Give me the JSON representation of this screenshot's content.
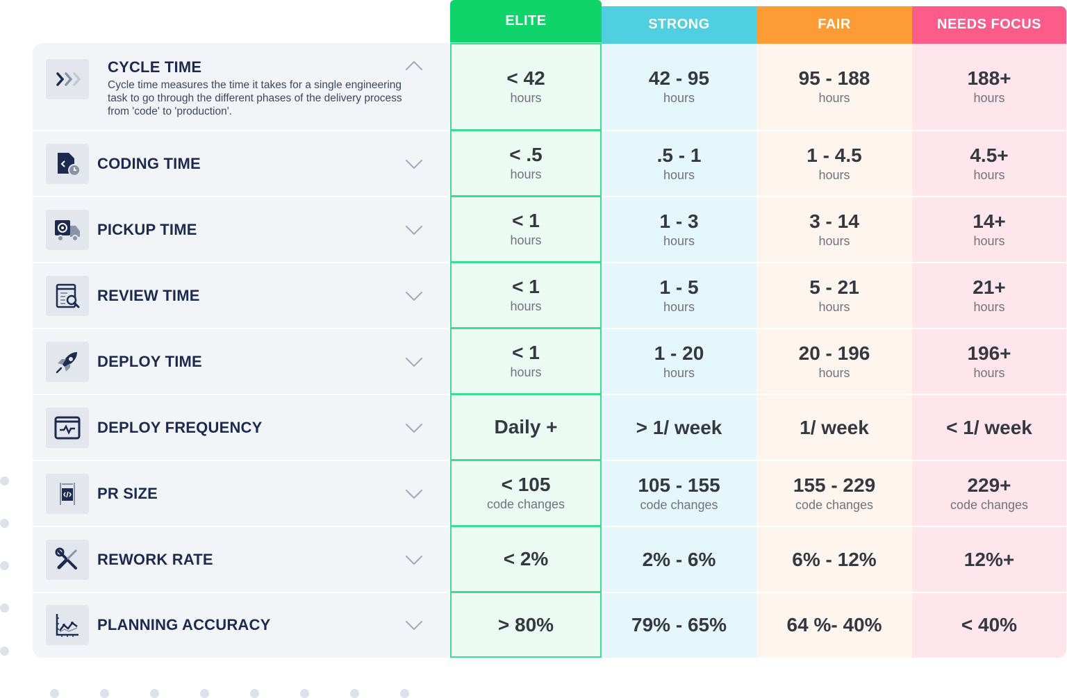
{
  "columns": [
    {
      "key": "elite",
      "label": "ELITE",
      "color": "#0fd46a",
      "bg": "#ebfaf3"
    },
    {
      "key": "strong",
      "label": "STRONG",
      "color": "#4fcfe0",
      "bg": "#e5f7fa"
    },
    {
      "key": "fair",
      "label": "FAIR",
      "color": "#fd9b35",
      "bg": "#fff5ef"
    },
    {
      "key": "needs_focus",
      "label": "NEEDS FOCUS",
      "color": "#fd5c8a",
      "bg": "#ffe6ec"
    }
  ],
  "metrics": [
    {
      "title": "CYCLE TIME",
      "icon": "chevrons-icon",
      "expanded": true,
      "description": "Cycle time measures the time it takes for a single engineering task to go through the different phases of the delivery process from 'code' to 'production'.",
      "cells": [
        {
          "value": "< 42",
          "unit": "hours"
        },
        {
          "value": "42 - 95",
          "unit": "hours"
        },
        {
          "value": "95 - 188",
          "unit": "hours"
        },
        {
          "value": "188+",
          "unit": "hours"
        }
      ]
    },
    {
      "title": "CODING TIME",
      "icon": "code-file-clock-icon",
      "expanded": false,
      "cells": [
        {
          "value": "< .5",
          "unit": "hours"
        },
        {
          "value": ".5 - 1",
          "unit": "hours"
        },
        {
          "value": "1 - 4.5",
          "unit": "hours"
        },
        {
          "value": "4.5+",
          "unit": "hours"
        }
      ]
    },
    {
      "title": "PICKUP TIME",
      "icon": "delivery-truck-icon",
      "expanded": false,
      "cells": [
        {
          "value": "< 1",
          "unit": "hours"
        },
        {
          "value": "1 - 3",
          "unit": "hours"
        },
        {
          "value": "3 - 14",
          "unit": "hours"
        },
        {
          "value": "14+",
          "unit": "hours"
        }
      ]
    },
    {
      "title": "REVIEW TIME",
      "icon": "document-search-icon",
      "expanded": false,
      "cells": [
        {
          "value": "< 1",
          "unit": "hours"
        },
        {
          "value": "1 - 5",
          "unit": "hours"
        },
        {
          "value": "5 - 21",
          "unit": "hours"
        },
        {
          "value": "21+",
          "unit": "hours"
        }
      ]
    },
    {
      "title": "DEPLOY TIME",
      "icon": "rocket-icon",
      "expanded": false,
      "cells": [
        {
          "value": "< 1",
          "unit": "hours"
        },
        {
          "value": "1 - 20",
          "unit": "hours"
        },
        {
          "value": "20 - 196",
          "unit": "hours"
        },
        {
          "value": "196+",
          "unit": "hours"
        }
      ]
    },
    {
      "title": "DEPLOY FREQUENCY",
      "icon": "monitor-pulse-icon",
      "expanded": false,
      "cells": [
        {
          "value": "Daily +",
          "unit": ""
        },
        {
          "value": "> 1/ week",
          "unit": ""
        },
        {
          "value": "1/ week",
          "unit": ""
        },
        {
          "value": "< 1/ week",
          "unit": ""
        }
      ]
    },
    {
      "title": "PR SIZE",
      "icon": "code-ruler-icon",
      "expanded": false,
      "cells": [
        {
          "value": "< 105",
          "unit": "code changes"
        },
        {
          "value": "105 - 155",
          "unit": "code changes"
        },
        {
          "value": "155 - 229",
          "unit": "code changes"
        },
        {
          "value": "229+",
          "unit": "code changes"
        }
      ]
    },
    {
      "title": "REWORK RATE",
      "icon": "wrench-screwdriver-icon",
      "expanded": false,
      "cells": [
        {
          "value": "< 2%",
          "unit": ""
        },
        {
          "value": "2% - 6%",
          "unit": ""
        },
        {
          "value": "6% - 12%",
          "unit": ""
        },
        {
          "value": "12%+",
          "unit": ""
        }
      ]
    },
    {
      "title": "PLANNING ACCURACY",
      "icon": "line-chart-icon",
      "expanded": false,
      "cells": [
        {
          "value": "> 80%",
          "unit": ""
        },
        {
          "value": "79% - 65%",
          "unit": ""
        },
        {
          "value": "64 %- 40%",
          "unit": ""
        },
        {
          "value": "< 40%",
          "unit": ""
        }
      ]
    }
  ]
}
